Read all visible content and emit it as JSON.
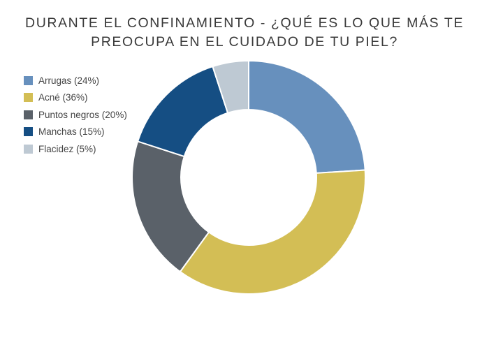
{
  "chart_data": {
    "type": "pie",
    "variant": "donut",
    "title_lines": [
      "DURANTE EL CONFINAMIENTO - ¿QUÉ ES LO QUE MÁS TE",
      "PREOCUPA EN EL CUIDADO DE TU PIEL?"
    ],
    "legend_position": "top-left",
    "categories": [
      "Arrugas",
      "Acné",
      "Puntos negros",
      "Manchas",
      "Flacidez"
    ],
    "values": [
      24,
      36,
      20,
      15,
      5
    ],
    "unit": "%",
    "legend_labels": [
      "Arrugas (24%)",
      "Acné (36%)",
      "Puntos negros (20%)",
      "Manchas (15%)",
      "Flacidez (5%)"
    ],
    "colors": [
      "#6790bd",
      "#d3be55",
      "#5a6169",
      "#154e83",
      "#bec9d3"
    ]
  }
}
